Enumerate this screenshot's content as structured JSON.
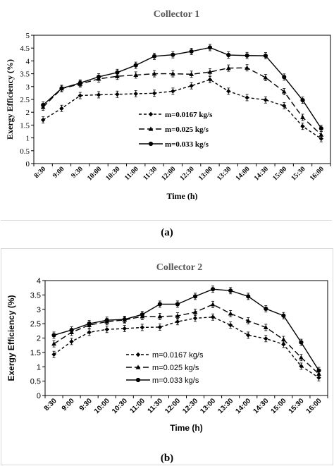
{
  "chart_data": [
    {
      "type": "line",
      "title": "Collector 1",
      "xlabel": "Time (h)",
      "ylabel": "Exergy Efficiency (%)",
      "ylim": [
        0,
        5
      ],
      "yticks": [
        "0",
        "0.5",
        "1",
        "1.5",
        "2",
        "2.5",
        "3",
        "3.5",
        "4",
        "4.5",
        "5"
      ],
      "categories": [
        "8:30",
        "9:00",
        "9:30",
        "10:00",
        "10:30",
        "11:00",
        "11:30",
        "12:00",
        "12:30",
        "13:00",
        "13:30",
        "14:00",
        "14:30",
        "15:00",
        "15:30",
        "16:00"
      ],
      "grid": false,
      "legend_position": "center-left",
      "panel_label": "(a)",
      "series": [
        {
          "name": "m=0.0167 kg/s",
          "marker": "diamond",
          "line": "dashed-short",
          "values": [
            1.7,
            2.15,
            2.65,
            2.68,
            2.7,
            2.72,
            2.74,
            2.82,
            3.03,
            3.27,
            2.82,
            2.57,
            2.48,
            2.25,
            1.45,
            0.97
          ]
        },
        {
          "name": "m=0.025 kg/s",
          "marker": "triangle",
          "line": "dashed-long",
          "values": [
            2.2,
            2.92,
            3.1,
            3.3,
            3.4,
            3.45,
            3.5,
            3.5,
            3.48,
            3.57,
            3.72,
            3.73,
            3.35,
            2.8,
            1.8,
            1.12
          ]
        },
        {
          "name": "m=0.033 kg/s",
          "marker": "circle",
          "line": "solid",
          "values": [
            2.28,
            2.93,
            3.14,
            3.38,
            3.55,
            3.83,
            4.18,
            4.24,
            4.37,
            4.52,
            4.23,
            4.21,
            4.2,
            3.37,
            2.47,
            1.37
          ]
        }
      ]
    },
    {
      "type": "line",
      "title": "Collector 2",
      "xlabel": "Time (h)",
      "ylabel": "Exergy Efficiency (%)",
      "ylim": [
        0,
        4
      ],
      "yticks": [
        "0",
        "0.5",
        "1",
        "1.5",
        "2",
        "2.5",
        "3",
        "3.5",
        "4"
      ],
      "categories": [
        "8:30",
        "9:00",
        "9:30",
        "10:00",
        "10:30",
        "11:00",
        "11:30",
        "12:00",
        "12:30",
        "13:00",
        "13:30",
        "14:00",
        "14:30",
        "15:00",
        "15:30",
        "16:00"
      ],
      "grid": false,
      "legend_position": "center-left",
      "panel_label": "(b)",
      "series": [
        {
          "name": "m=0.0167 kg/s",
          "marker": "diamond",
          "line": "dashed-short",
          "values": [
            1.43,
            1.88,
            2.2,
            2.3,
            2.33,
            2.37,
            2.38,
            2.57,
            2.69,
            2.73,
            2.45,
            2.1,
            1.98,
            1.78,
            1.02,
            0.62
          ]
        },
        {
          "name": "m=0.025 kg/s",
          "marker": "triangle",
          "line": "dashed-long",
          "values": [
            1.8,
            2.2,
            2.45,
            2.57,
            2.63,
            2.75,
            2.75,
            2.77,
            2.9,
            3.17,
            2.85,
            2.6,
            2.37,
            1.95,
            1.32,
            0.75
          ]
        },
        {
          "name": "m=0.033 kg/s",
          "marker": "circle",
          "line": "solid",
          "values": [
            2.1,
            2.28,
            2.5,
            2.62,
            2.65,
            2.82,
            3.18,
            3.18,
            3.45,
            3.7,
            3.65,
            3.45,
            3.02,
            2.78,
            1.85,
            0.87
          ]
        }
      ]
    }
  ]
}
